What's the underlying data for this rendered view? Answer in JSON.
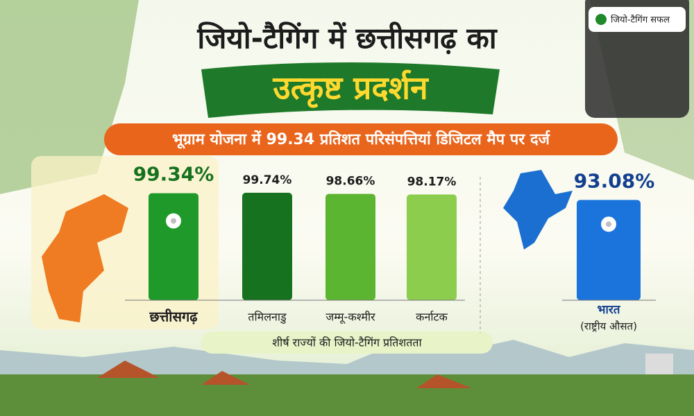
{
  "chart_data": {
    "type": "bar",
    "title": "जियो-टैगिंग में छत्तीसगढ़ का",
    "title_highlight": "उत्कृष्ट प्रदर्शन",
    "subtitle": "भूग्राम योजना में 99.34 प्रतिशत परिसंपत्तियां डिजिटल मैप पर दर्ज",
    "badge": "जियो-टैगिंग सफल",
    "caption": "शीर्ष राज्यों की जियो-टैगिंग प्रतिशतता",
    "categories": [
      "छत्तीसगढ़",
      "तमिलनाडु",
      "जम्मू-कश्मीर",
      "कर्नाटक"
    ],
    "values": [
      99.34,
      99.74,
      98.66,
      98.17
    ],
    "value_labels": [
      "99.34%",
      "99.74%",
      "98.66%",
      "98.17%"
    ],
    "colors": [
      "#1f9a2a",
      "#17721f",
      "#5cb531",
      "#8ccd4e"
    ],
    "national": {
      "name": "भारत",
      "note": "(राष्ट्रीय औसत)",
      "value": 93.08,
      "value_label": "93.08%",
      "color": "#1b74dc"
    }
  }
}
